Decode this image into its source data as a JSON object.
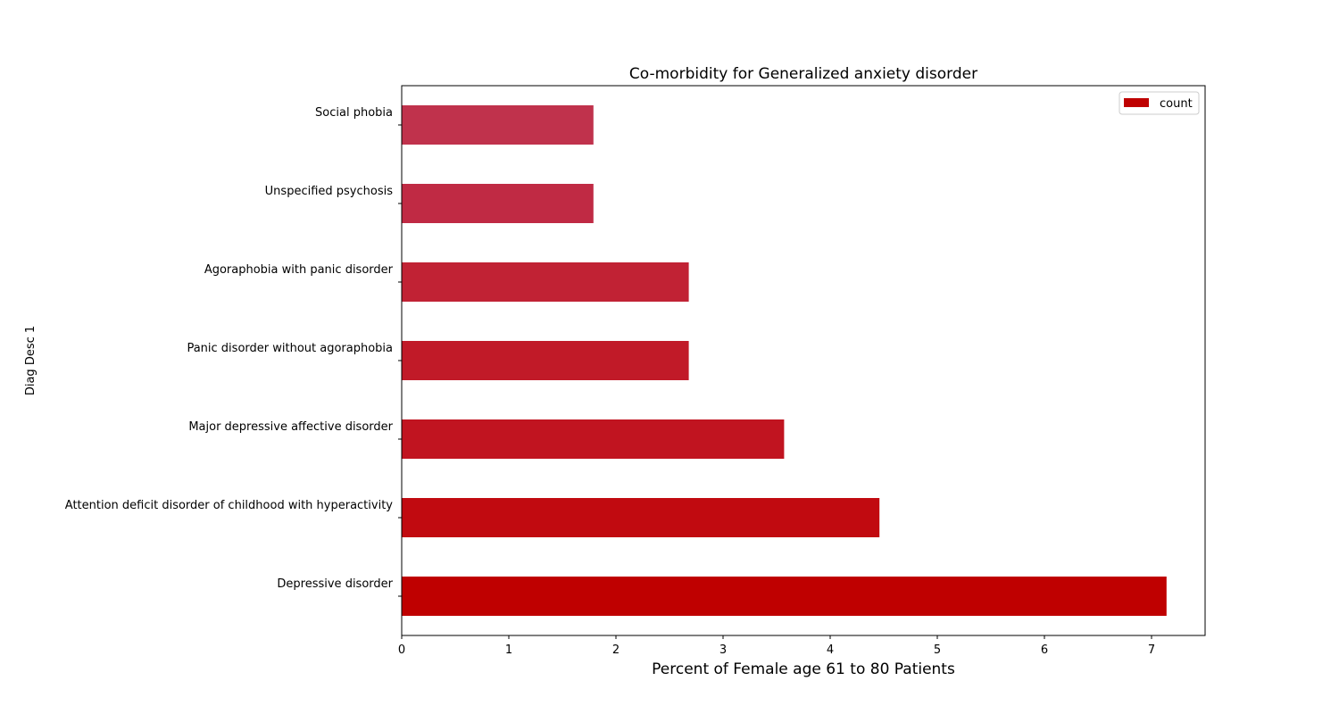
{
  "chart_data": {
    "type": "bar",
    "orientation": "horizontal",
    "title": "Co-morbidity for Generalized anxiety disorder",
    "xlabel": "Percent of Female age 61 to 80 Patients",
    "ylabel": "Diag Desc 1",
    "categories": [
      "Depressive disorder",
      "Attention deficit disorder of childhood with hyperactivity",
      "Major depressive affective disorder",
      "Panic disorder without agoraphobia",
      "Agoraphobia with panic disorder",
      "Unspecified psychosis",
      "Social phobia"
    ],
    "series": [
      {
        "name": "count",
        "values": [
          7.14,
          4.46,
          3.57,
          2.68,
          2.68,
          1.79,
          1.79
        ],
        "colors": [
          "#bf0000",
          "#c10a10",
          "#c11420",
          "#c11a28",
          "#c12234",
          "#c02a44",
          "#c0324c"
        ]
      }
    ],
    "xlim": [
      0,
      7.5
    ],
    "xticks": [
      "0",
      "1",
      "2",
      "3",
      "4",
      "5",
      "6",
      "7"
    ],
    "legend_position": "top-right",
    "grid": false
  }
}
